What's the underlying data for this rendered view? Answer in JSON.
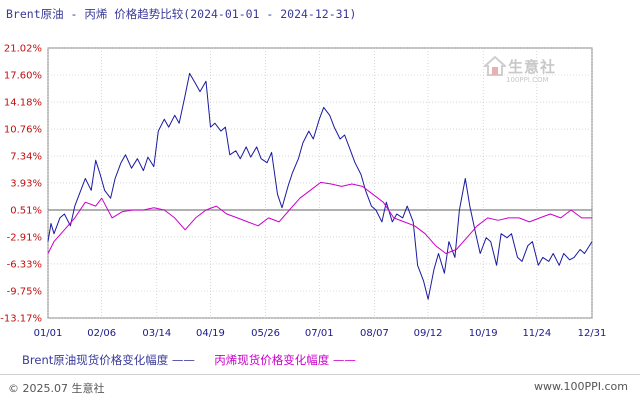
{
  "title": "Brent原油 - 丙烯 价格趋势比较(2024-01-01 - 2024-12-31)",
  "watermark": {
    "name": "生意社",
    "url": "100PPI.COM"
  },
  "legend": {
    "brent_label": "Brent原油现货价格变化幅度 ——",
    "propylene_label": "丙烯现货价格变化幅度 ——"
  },
  "footer": {
    "copyright": "© 2025.07 生意社",
    "site": "www.100PPI.com"
  },
  "colors": {
    "brent": "#1a1aa0",
    "propylene": "#cc00cc",
    "ytick": "#c01010",
    "xtick": "#1a1a8a",
    "grid": "#c0c0c0",
    "zero": "#808080"
  },
  "chart_data": {
    "type": "line",
    "title": "Brent原油 - 丙烯 价格趋势比较(2024-01-01 - 2024-12-31)",
    "y_unit": "%",
    "ylim": [
      -13.17,
      21.02
    ],
    "yticks": [
      21.02,
      17.6,
      14.18,
      10.76,
      7.34,
      3.93,
      0.51,
      -2.91,
      -6.33,
      -9.75,
      -13.17
    ],
    "ytick_labels": [
      "21.02%",
      "17.60%",
      "14.18%",
      "10.76%",
      "7.34%",
      "3.93%",
      "0.51%",
      "-2.91%",
      "-6.33%",
      "-9.75%",
      "-13.17%"
    ],
    "xlim": [
      "2024-01-01",
      "2024-12-31"
    ],
    "xticks": [
      "2024-01-01",
      "2024-02-06",
      "2024-03-14",
      "2024-04-19",
      "2024-05-26",
      "2024-07-01",
      "2024-08-07",
      "2024-09-12",
      "2024-10-19",
      "2024-11-24",
      "2024-12-31"
    ],
    "xtick_labels": [
      "01/01",
      "02/06",
      "03/14",
      "04/19",
      "05/26",
      "07/01",
      "08/07",
      "09/12",
      "10/19",
      "11/24",
      "12/31"
    ],
    "grid": true,
    "legend_position": "bottom",
    "series": [
      {
        "name": "Brent原油现货价格变化幅度",
        "color": "#1a1aa0",
        "points": [
          [
            "2024-01-01",
            -3.5
          ],
          [
            "2024-01-03",
            -1.2
          ],
          [
            "2024-01-05",
            -2.5
          ],
          [
            "2024-01-09",
            -0.5
          ],
          [
            "2024-01-12",
            0.0
          ],
          [
            "2024-01-16",
            -1.5
          ],
          [
            "2024-01-19",
            1.0
          ],
          [
            "2024-01-23",
            3.0
          ],
          [
            "2024-01-26",
            4.5
          ],
          [
            "2024-01-30",
            3.0
          ],
          [
            "2024-02-02",
            6.8
          ],
          [
            "2024-02-05",
            5.0
          ],
          [
            "2024-02-08",
            3.0
          ],
          [
            "2024-02-12",
            2.0
          ],
          [
            "2024-02-15",
            4.5
          ],
          [
            "2024-02-19",
            6.5
          ],
          [
            "2024-02-22",
            7.5
          ],
          [
            "2024-02-26",
            5.8
          ],
          [
            "2024-03-01",
            7.0
          ],
          [
            "2024-03-05",
            5.5
          ],
          [
            "2024-03-08",
            7.2
          ],
          [
            "2024-03-12",
            6.0
          ],
          [
            "2024-03-15",
            10.5
          ],
          [
            "2024-03-19",
            12.0
          ],
          [
            "2024-03-22",
            11.0
          ],
          [
            "2024-03-26",
            12.5
          ],
          [
            "2024-03-29",
            11.5
          ],
          [
            "2024-04-02",
            15.0
          ],
          [
            "2024-04-05",
            17.8
          ],
          [
            "2024-04-09",
            16.5
          ],
          [
            "2024-04-12",
            15.5
          ],
          [
            "2024-04-16",
            16.8
          ],
          [
            "2024-04-19",
            11.0
          ],
          [
            "2024-04-22",
            11.5
          ],
          [
            "2024-04-26",
            10.5
          ],
          [
            "2024-04-29",
            11.0
          ],
          [
            "2024-05-02",
            7.5
          ],
          [
            "2024-05-06",
            8.0
          ],
          [
            "2024-05-09",
            7.0
          ],
          [
            "2024-05-13",
            8.5
          ],
          [
            "2024-05-16",
            7.2
          ],
          [
            "2024-05-20",
            8.5
          ],
          [
            "2024-05-23",
            7.0
          ],
          [
            "2024-05-27",
            6.5
          ],
          [
            "2024-05-30",
            7.8
          ],
          [
            "2024-06-03",
            2.5
          ],
          [
            "2024-06-06",
            0.8
          ],
          [
            "2024-06-10",
            3.5
          ],
          [
            "2024-06-13",
            5.2
          ],
          [
            "2024-06-17",
            7.0
          ],
          [
            "2024-06-20",
            9.0
          ],
          [
            "2024-06-24",
            10.5
          ],
          [
            "2024-06-27",
            9.5
          ],
          [
            "2024-07-01",
            12.0
          ],
          [
            "2024-07-04",
            13.5
          ],
          [
            "2024-07-08",
            12.5
          ],
          [
            "2024-07-11",
            11.0
          ],
          [
            "2024-07-15",
            9.5
          ],
          [
            "2024-07-18",
            10.0
          ],
          [
            "2024-07-22",
            8.0
          ],
          [
            "2024-07-25",
            6.5
          ],
          [
            "2024-07-29",
            5.0
          ],
          [
            "2024-08-01",
            3.0
          ],
          [
            "2024-08-05",
            1.0
          ],
          [
            "2024-08-08",
            0.5
          ],
          [
            "2024-08-12",
            -1.0
          ],
          [
            "2024-08-15",
            1.5
          ],
          [
            "2024-08-19",
            -1.0
          ],
          [
            "2024-08-22",
            0.0
          ],
          [
            "2024-08-26",
            -0.5
          ],
          [
            "2024-08-29",
            1.0
          ],
          [
            "2024-09-02",
            -1.0
          ],
          [
            "2024-09-05",
            -6.5
          ],
          [
            "2024-09-09",
            -8.5
          ],
          [
            "2024-09-12",
            -10.8
          ],
          [
            "2024-09-16",
            -7.0
          ],
          [
            "2024-09-19",
            -5.0
          ],
          [
            "2024-09-23",
            -7.5
          ],
          [
            "2024-09-26",
            -3.5
          ],
          [
            "2024-09-30",
            -5.5
          ],
          [
            "2024-10-03",
            0.5
          ],
          [
            "2024-10-07",
            4.5
          ],
          [
            "2024-10-10",
            1.0
          ],
          [
            "2024-10-14",
            -2.5
          ],
          [
            "2024-10-17",
            -5.0
          ],
          [
            "2024-10-21",
            -3.0
          ],
          [
            "2024-10-24",
            -3.5
          ],
          [
            "2024-10-28",
            -6.5
          ],
          [
            "2024-10-31",
            -2.5
          ],
          [
            "2024-11-04",
            -3.0
          ],
          [
            "2024-11-07",
            -2.5
          ],
          [
            "2024-11-11",
            -5.5
          ],
          [
            "2024-11-14",
            -6.0
          ],
          [
            "2024-11-18",
            -4.0
          ],
          [
            "2024-11-21",
            -3.5
          ],
          [
            "2024-11-25",
            -6.5
          ],
          [
            "2024-11-28",
            -5.5
          ],
          [
            "2024-12-02",
            -6.0
          ],
          [
            "2024-12-05",
            -5.0
          ],
          [
            "2024-12-09",
            -6.5
          ],
          [
            "2024-12-12",
            -5.0
          ],
          [
            "2024-12-16",
            -5.8
          ],
          [
            "2024-12-19",
            -5.5
          ],
          [
            "2024-12-23",
            -4.5
          ],
          [
            "2024-12-26",
            -5.0
          ],
          [
            "2024-12-31",
            -3.5
          ]
        ]
      },
      {
        "name": "丙烯现货价格变化幅度",
        "color": "#cc00cc",
        "points": [
          [
            "2024-01-01",
            -5.0
          ],
          [
            "2024-01-05",
            -3.5
          ],
          [
            "2024-01-12",
            -2.0
          ],
          [
            "2024-01-19",
            -0.5
          ],
          [
            "2024-01-26",
            1.5
          ],
          [
            "2024-02-02",
            1.0
          ],
          [
            "2024-02-06",
            2.0
          ],
          [
            "2024-02-13",
            -0.5
          ],
          [
            "2024-02-20",
            0.3
          ],
          [
            "2024-02-27",
            0.5
          ],
          [
            "2024-03-05",
            0.5
          ],
          [
            "2024-03-12",
            0.8
          ],
          [
            "2024-03-19",
            0.5
          ],
          [
            "2024-03-26",
            -0.5
          ],
          [
            "2024-04-02",
            -2.0
          ],
          [
            "2024-04-09",
            -0.5
          ],
          [
            "2024-04-16",
            0.5
          ],
          [
            "2024-04-23",
            1.0
          ],
          [
            "2024-04-30",
            0.0
          ],
          [
            "2024-05-07",
            -0.5
          ],
          [
            "2024-05-14",
            -1.0
          ],
          [
            "2024-05-21",
            -1.5
          ],
          [
            "2024-05-28",
            -0.5
          ],
          [
            "2024-06-04",
            -1.0
          ],
          [
            "2024-06-11",
            0.5
          ],
          [
            "2024-06-18",
            2.0
          ],
          [
            "2024-06-25",
            3.0
          ],
          [
            "2024-07-02",
            4.0
          ],
          [
            "2024-07-09",
            3.8
          ],
          [
            "2024-07-16",
            3.5
          ],
          [
            "2024-07-23",
            3.8
          ],
          [
            "2024-07-30",
            3.5
          ],
          [
            "2024-08-06",
            2.5
          ],
          [
            "2024-08-13",
            1.5
          ],
          [
            "2024-08-20",
            -0.5
          ],
          [
            "2024-08-27",
            -1.0
          ],
          [
            "2024-09-03",
            -1.5
          ],
          [
            "2024-09-10",
            -2.5
          ],
          [
            "2024-09-17",
            -4.0
          ],
          [
            "2024-09-24",
            -5.0
          ],
          [
            "2024-10-01",
            -4.5
          ],
          [
            "2024-10-08",
            -3.0
          ],
          [
            "2024-10-15",
            -1.5
          ],
          [
            "2024-10-22",
            -0.5
          ],
          [
            "2024-10-29",
            -0.8
          ],
          [
            "2024-11-05",
            -0.5
          ],
          [
            "2024-11-12",
            -0.5
          ],
          [
            "2024-11-19",
            -1.0
          ],
          [
            "2024-11-26",
            -0.5
          ],
          [
            "2024-12-03",
            0.0
          ],
          [
            "2024-12-10",
            -0.5
          ],
          [
            "2024-12-17",
            0.5
          ],
          [
            "2024-12-24",
            -0.5
          ],
          [
            "2024-12-31",
            -0.5
          ]
        ]
      }
    ]
  }
}
